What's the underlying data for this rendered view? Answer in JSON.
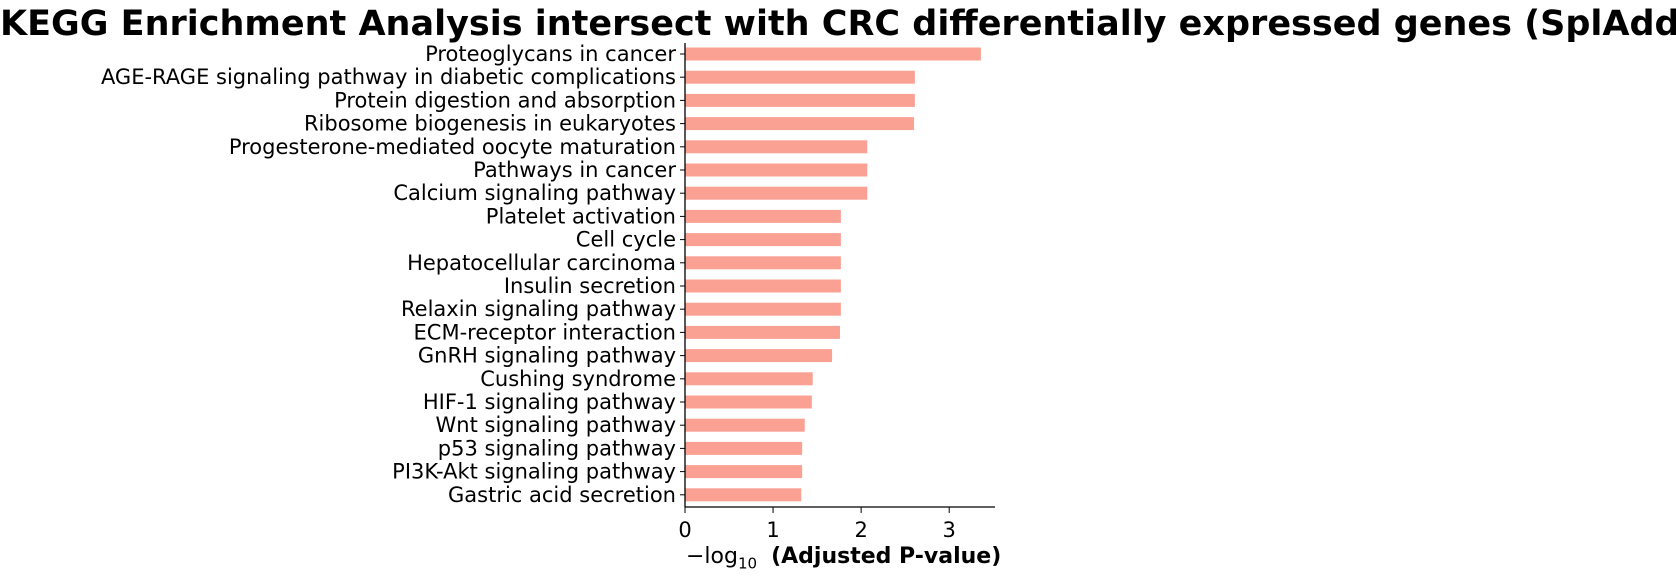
{
  "chart_data": {
    "type": "bar",
    "orientation": "horizontal",
    "title": "KEGG Enrichment Analysis intersect with CRC differentially expressed genes (SplAdder)",
    "xlabel": {
      "prefix": "−log",
      "subscript": "10",
      "suffix": "(Adjusted P-value)"
    },
    "ylabel": "",
    "xlim": [
      0,
      3.52
    ],
    "xticks": [
      "0",
      "1",
      "2",
      "3"
    ],
    "grid": false,
    "bar_color": "#fba194",
    "categories": [
      "Proteoglycans in cancer",
      "AGE-RAGE signaling pathway in diabetic complications",
      "Protein digestion and absorption",
      "Ribosome biogenesis in eukaryotes",
      "Progesterone-mediated oocyte maturation",
      "Pathways in cancer",
      "Calcium signaling pathway",
      "Platelet activation",
      "Cell cycle",
      "Hepatocellular carcinoma",
      "Insulin secretion",
      "Relaxin signaling pathway",
      "ECM-receptor interaction",
      "GnRH signaling pathway",
      "Cushing syndrome",
      "HIF-1 signaling pathway",
      "Wnt signaling pathway",
      "p53 signaling pathway",
      "PI3K-Akt signaling pathway",
      "Gastric acid secretion"
    ],
    "values": [
      3.36,
      2.61,
      2.61,
      2.6,
      2.07,
      2.07,
      2.07,
      1.77,
      1.77,
      1.77,
      1.77,
      1.77,
      1.76,
      1.67,
      1.45,
      1.44,
      1.36,
      1.33,
      1.33,
      1.32
    ]
  }
}
